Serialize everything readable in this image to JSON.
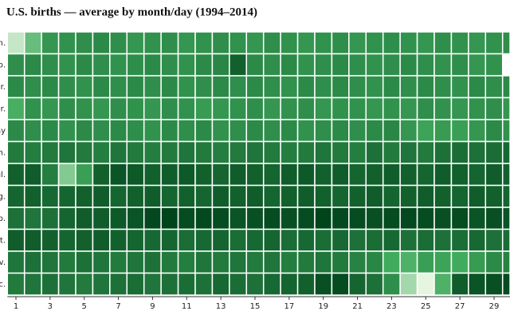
{
  "chart_data": {
    "type": "heatmap",
    "title": "U.S. births — average by month/day (1994–2014)",
    "x": [
      1,
      2,
      3,
      4,
      5,
      6,
      7,
      8,
      9,
      10,
      11,
      12,
      13,
      14,
      15,
      16,
      17,
      18,
      19,
      20,
      21,
      22,
      23,
      24,
      25,
      26,
      27,
      28,
      29,
      30
    ],
    "y": [
      "Jan.",
      "Feb.",
      "Mar.",
      "Apr.",
      "May",
      "Jun.",
      "Jul.",
      "Aug.",
      "Sep.",
      "Oct.",
      "Nov.",
      "Dec."
    ],
    "xticks": [
      1,
      3,
      5,
      7,
      9,
      11,
      13,
      15,
      17,
      19,
      21,
      23,
      25,
      27,
      29
    ],
    "zlim": [
      8000,
      13000
    ],
    "colors": [
      "#e5f5e0",
      "#41ab5d",
      "#00441b"
    ],
    "values": [
      [
        8500,
        9900,
        11000,
        11100,
        11200,
        11300,
        11200,
        11000,
        11100,
        11200,
        11000,
        11100,
        11200,
        11100,
        11000,
        11200,
        11100,
        11000,
        11100,
        11200,
        11000,
        11100,
        11200,
        11100,
        11000,
        11200,
        11100,
        11000,
        11100,
        11200
      ],
      [
        11200,
        11300,
        11200,
        11100,
        11300,
        11200,
        11100,
        11200,
        11300,
        11200,
        11100,
        11300,
        11400,
        12300,
        11300,
        11200,
        11300,
        11100,
        11200,
        11300,
        11200,
        11100,
        11200,
        11300,
        11200,
        11100,
        11200,
        11000,
        11100,
        null
      ],
      [
        11300,
        11200,
        11300,
        11200,
        11100,
        11300,
        11200,
        11300,
        11200,
        11300,
        11100,
        11200,
        11300,
        11200,
        11300,
        11200,
        11100,
        11300,
        11200,
        11300,
        11200,
        11100,
        11300,
        11200,
        11300,
        11200,
        11100,
        11300,
        11200,
        11300
      ],
      [
        10400,
        11100,
        11000,
        11200,
        11100,
        11000,
        11200,
        11100,
        11000,
        11200,
        11100,
        10900,
        11000,
        11100,
        11200,
        11000,
        11100,
        11200,
        11000,
        11100,
        11100,
        11000,
        11100,
        11000,
        11200,
        11100,
        11000,
        11100,
        11200,
        11000
      ],
      [
        11300,
        11200,
        11300,
        11100,
        11300,
        11200,
        11300,
        11200,
        11100,
        11300,
        11200,
        11300,
        11100,
        11200,
        11300,
        11200,
        11300,
        11100,
        11200,
        11300,
        11200,
        11300,
        11400,
        11000,
        10700,
        10900,
        10800,
        11000,
        11300,
        11100
      ],
      [
        11700,
        11600,
        11700,
        11800,
        11700,
        11600,
        11800,
        11700,
        11600,
        11700,
        11800,
        11700,
        11600,
        11700,
        11800,
        11700,
        11600,
        11700,
        11800,
        11700,
        11600,
        11900,
        11700,
        11800,
        11700,
        11900,
        12000,
        11900,
        12000,
        12100
      ],
      [
        12300,
        12400,
        11600,
        9500,
        10800,
        12300,
        12600,
        12500,
        12300,
        12400,
        12500,
        12300,
        12200,
        12400,
        12300,
        12200,
        12400,
        12500,
        12300,
        12400,
        12200,
        12300,
        12400,
        12300,
        12200,
        12400,
        12300,
        12200,
        12400,
        12300
      ],
      [
        12200,
        12300,
        12100,
        12200,
        12300,
        12400,
        12200,
        12300,
        12400,
        12200,
        12300,
        12200,
        12400,
        12300,
        12400,
        12200,
        12300,
        12400,
        12300,
        12200,
        12300,
        12400,
        12200,
        12300,
        12400,
        12300,
        12200,
        12400,
        12300,
        12200
      ],
      [
        11900,
        11800,
        11900,
        12200,
        12400,
        12400,
        12500,
        12600,
        12900,
        13000,
        12800,
        12900,
        12800,
        12600,
        12700,
        12800,
        12700,
        12800,
        13000,
        12900,
        12800,
        12700,
        12800,
        12900,
        12800,
        12700,
        12800,
        12600,
        12700,
        12600
      ],
      [
        12400,
        12400,
        12300,
        12200,
        12300,
        12400,
        12300,
        12200,
        12100,
        12200,
        12000,
        12100,
        12200,
        12000,
        12100,
        12200,
        12000,
        12100,
        12000,
        12100,
        11900,
        12000,
        12100,
        11900,
        12000,
        11900,
        12000,
        12100,
        11900,
        12000
      ],
      [
        11800,
        11900,
        11800,
        11700,
        11900,
        11800,
        11700,
        11800,
        11900,
        11700,
        11600,
        11800,
        11700,
        11800,
        11700,
        11800,
        11600,
        11700,
        11800,
        11700,
        11500,
        11400,
        10500,
        10300,
        10800,
        10700,
        10500,
        10900,
        11300,
        11500
      ],
      [
        11700,
        11800,
        11900,
        11800,
        11700,
        11800,
        11900,
        12000,
        11800,
        11900,
        12000,
        11900,
        12100,
        12000,
        11900,
        12100,
        12200,
        12300,
        12700,
        12800,
        12200,
        11900,
        11200,
        9000,
        8000,
        10300,
        12400,
        12600,
        12700,
        12800
      ]
    ]
  }
}
